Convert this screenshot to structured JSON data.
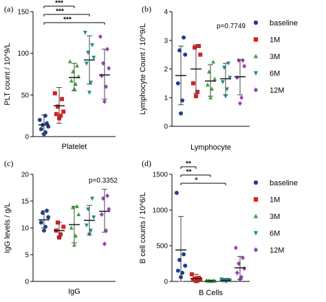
{
  "chart_data": [
    {
      "panel_label": "(a)",
      "type": "scatter",
      "xlabel": "Platelet",
      "ylabel": "PLT count / 10^9/L",
      "ylim": [
        0,
        150
      ],
      "yticks": [
        0,
        50,
        100,
        150
      ],
      "series": [
        {
          "name": "baseline",
          "color": "#1f3f8f",
          "marker": "circle",
          "mean": 14,
          "sd_low": 3,
          "sd_high": 26,
          "points": [
            3,
            5,
            9,
            12,
            14,
            16,
            20,
            25
          ]
        },
        {
          "name": "1M",
          "color": "#d92020",
          "marker": "square",
          "mean": 37,
          "sd_low": 16,
          "sd_high": 59,
          "points": [
            22,
            25,
            27,
            30,
            36,
            45,
            52
          ]
        },
        {
          "name": "3M",
          "color": "#3aa63a",
          "marker": "triangle-up",
          "mean": 71,
          "sd_low": 55,
          "sd_high": 88,
          "points": [
            57,
            63,
            67,
            72,
            78,
            85,
            90
          ]
        },
        {
          "name": "6M",
          "color": "#1a9090",
          "marker": "triangle-down",
          "mean": 92,
          "sd_low": 63,
          "sd_high": 121,
          "points": [
            53,
            65,
            88,
            95,
            101,
            110,
            125
          ]
        },
        {
          "name": "12M",
          "color": "#9b3fb5",
          "marker": "diamond",
          "mean": 74,
          "sd_low": 45,
          "sd_high": 105,
          "points": [
            42,
            60,
            73,
            82,
            88,
            105,
            120
          ]
        }
      ],
      "significance": [
        {
          "from": 0,
          "to": 2,
          "label": "***"
        },
        {
          "from": 0,
          "to": 3,
          "label": "***"
        },
        {
          "from": 0,
          "to": 4,
          "label": "***"
        }
      ]
    },
    {
      "panel_label": "(b)",
      "type": "scatter",
      "xlabel": "Lymphocyte",
      "ylabel": "Lymphocyte Count / 10^9/L",
      "ylim": [
        0,
        4
      ],
      "yticks": [
        0,
        1,
        2,
        3,
        4
      ],
      "p_value": "p=0.7749",
      "series": [
        {
          "name": "baseline",
          "color": "#1f3f8f",
          "marker": "circle",
          "mean": 1.77,
          "sd_low": 0.75,
          "sd_high": 2.8,
          "points": [
            0.45,
            0.9,
            1.5,
            2.5,
            2.65,
            3.1
          ]
        },
        {
          "name": "1M",
          "color": "#d92020",
          "marker": "square",
          "mean": 2.0,
          "sd_low": 1.15,
          "sd_high": 2.85,
          "points": [
            1.05,
            1.2,
            1.5,
            2.5,
            2.75,
            2.8
          ]
        },
        {
          "name": "3M",
          "color": "#3aa63a",
          "marker": "triangle-up",
          "mean": 1.58,
          "sd_low": 1.05,
          "sd_high": 2.15,
          "points": [
            1.0,
            1.3,
            1.45,
            1.65,
            1.9,
            2.25
          ]
        },
        {
          "name": "6M",
          "color": "#1a9090",
          "marker": "triangle-down",
          "mean": 1.66,
          "sd_low": 1.1,
          "sd_high": 2.2,
          "points": [
            1.05,
            1.3,
            1.55,
            1.7,
            2.05,
            2.2
          ]
        },
        {
          "name": "12M",
          "color": "#9b3fb5",
          "marker": "diamond",
          "mean": 1.73,
          "sd_low": 1.1,
          "sd_high": 2.33,
          "points": [
            0.8,
            1.0,
            1.7,
            2.1,
            2.3,
            2.3
          ]
        }
      ]
    },
    {
      "panel_label": "(c)",
      "type": "scatter",
      "xlabel": "IgG",
      "ylabel": "IgG levels / g/L",
      "ylim": [
        0,
        20
      ],
      "yticks": [
        0,
        5,
        10,
        15,
        20
      ],
      "p_value": "p=0.3352",
      "series": [
        {
          "name": "baseline",
          "color": "#1f3f8f",
          "marker": "circle",
          "mean": 11.5,
          "sd_low": 10.0,
          "sd_high": 13.2,
          "points": [
            9.5,
            10.2,
            11.0,
            12.0,
            12.8,
            13.2
          ]
        },
        {
          "name": "1M",
          "color": "#d92020",
          "marker": "square",
          "mean": 9.5,
          "sd_low": 8.3,
          "sd_high": 11.0,
          "points": [
            8.2,
            8.8,
            9.5,
            10.2,
            11.0
          ]
        },
        {
          "name": "3M",
          "color": "#3aa63a",
          "marker": "triangle-up",
          "mean": 10.6,
          "sd_low": 7.2,
          "sd_high": 14.0,
          "points": [
            6.8,
            8.5,
            10.0,
            12.5,
            13.8,
            14.0
          ]
        },
        {
          "name": "6M",
          "color": "#1a9090",
          "marker": "triangle-down",
          "mean": 11.4,
          "sd_low": 8.7,
          "sd_high": 14.2,
          "points": [
            8.8,
            9.5,
            10.5,
            12.0,
            13.5,
            15.5
          ]
        },
        {
          "name": "12M",
          "color": "#9b3fb5",
          "marker": "diamond",
          "mean": 13.1,
          "sd_low": 9.2,
          "sd_high": 17.2,
          "points": [
            7.0,
            9.5,
            12.5,
            13.5,
            15.5,
            16.0
          ]
        }
      ]
    },
    {
      "panel_label": "(d)",
      "type": "scatter",
      "xlabel": "B Cells",
      "ylabel": "B cell counts / 10^6/L",
      "ylim": [
        0,
        1500
      ],
      "yticks": [
        0,
        500,
        1000,
        1500
      ],
      "series": [
        {
          "name": "baseline",
          "color": "#1f3f8f",
          "marker": "circle",
          "mean": 440,
          "sd_low": 0,
          "sd_high": 910,
          "points": [
            60,
            120,
            150,
            220,
            300,
            380,
            1240
          ]
        },
        {
          "name": "1M",
          "color": "#d92020",
          "marker": "square",
          "mean": 40,
          "sd_low": 0,
          "sd_high": 100,
          "points": [
            5,
            10,
            20,
            30,
            40,
            50,
            100
          ]
        },
        {
          "name": "3M",
          "color": "#3aa63a",
          "marker": "triangle-up",
          "mean": 5,
          "sd_low": 0,
          "sd_high": 15,
          "points": [
            2,
            3,
            5,
            6,
            8,
            10,
            12
          ]
        },
        {
          "name": "6M",
          "color": "#1a9090",
          "marker": "triangle-down",
          "mean": 15,
          "sd_low": 0,
          "sd_high": 40,
          "points": [
            3,
            6,
            10,
            15,
            20,
            25,
            30
          ]
        },
        {
          "name": "12M",
          "color": "#9b3fb5",
          "marker": "diamond",
          "mean": 190,
          "sd_low": 30,
          "sd_high": 350,
          "points": [
            30,
            60,
            120,
            180,
            250,
            330,
            470
          ]
        }
      ],
      "significance": [
        {
          "from": 0,
          "to": 1,
          "label": "**"
        },
        {
          "from": 0,
          "to": 2,
          "label": "**"
        },
        {
          "from": 0,
          "to": 3,
          "label": "*"
        }
      ]
    }
  ],
  "legend": [
    {
      "name": "baseline",
      "color": "#1f3f8f",
      "marker": "circle"
    },
    {
      "name": "1M",
      "color": "#d92020",
      "marker": "square"
    },
    {
      "name": "3M",
      "color": "#3aa63a",
      "marker": "triangle-up"
    },
    {
      "name": "6M",
      "color": "#1a9090",
      "marker": "triangle-down"
    },
    {
      "name": "12M",
      "color": "#9b3fb5",
      "marker": "diamond"
    }
  ]
}
